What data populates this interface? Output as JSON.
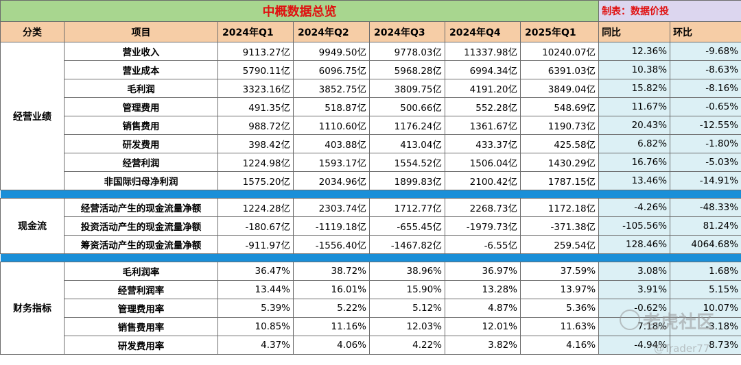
{
  "title": "中概数据总览",
  "maker": "制表：数据价投",
  "headers": {
    "category": "分类",
    "item": "项目",
    "quarters": [
      "2024年Q1",
      "2024年Q2",
      "2024年Q3",
      "2024年Q4",
      "2025年Q1"
    ],
    "yoy": "同比",
    "qoq": "环比"
  },
  "sections": [
    {
      "name": "经营业绩",
      "rows": [
        {
          "item": "营业收入",
          "values": [
            "9113.27亿",
            "9949.50亿",
            "9778.03亿",
            "11337.98亿",
            "10240.07亿"
          ],
          "yoy": "12.36%",
          "qoq": "-9.68%"
        },
        {
          "item": "营业成本",
          "values": [
            "5790.11亿",
            "6096.75亿",
            "5968.28亿",
            "6994.34亿",
            "6391.03亿"
          ],
          "yoy": "10.38%",
          "qoq": "-8.63%"
        },
        {
          "item": "毛利润",
          "values": [
            "3323.16亿",
            "3852.75亿",
            "3809.75亿",
            "4191.20亿",
            "3849.04亿"
          ],
          "yoy": "15.82%",
          "qoq": "-8.16%"
        },
        {
          "item": "管理费用",
          "values": [
            "491.35亿",
            "518.87亿",
            "500.66亿",
            "552.28亿",
            "548.69亿"
          ],
          "yoy": "11.67%",
          "qoq": "-0.65%"
        },
        {
          "item": "销售费用",
          "values": [
            "988.72亿",
            "1110.60亿",
            "1176.24亿",
            "1361.67亿",
            "1190.73亿"
          ],
          "yoy": "20.43%",
          "qoq": "-12.55%"
        },
        {
          "item": "研发费用",
          "values": [
            "398.42亿",
            "403.88亿",
            "413.04亿",
            "433.37亿",
            "425.58亿"
          ],
          "yoy": "6.82%",
          "qoq": "-1.80%"
        },
        {
          "item": "经营利润",
          "values": [
            "1224.98亿",
            "1593.17亿",
            "1554.52亿",
            "1506.04亿",
            "1430.29亿"
          ],
          "yoy": "16.76%",
          "qoq": "-5.03%"
        },
        {
          "item": "非国际归母净利润",
          "values": [
            "1575.20亿",
            "2034.96亿",
            "1899.83亿",
            "2100.42亿",
            "1787.15亿"
          ],
          "yoy": "13.46%",
          "qoq": "-14.91%"
        }
      ]
    },
    {
      "name": "现金流",
      "rows": [
        {
          "item": "经营活动产生的现金流量净额",
          "values": [
            "1224.28亿",
            "2303.74亿",
            "1712.77亿",
            "2268.73亿",
            "1172.18亿"
          ],
          "yoy": "-4.26%",
          "qoq": "-48.33%"
        },
        {
          "item": "投资活动产生的现金流量净额",
          "values": [
            "-180.67亿",
            "-1119.18亿",
            "-655.45亿",
            "-1979.73亿",
            "-371.38亿"
          ],
          "yoy": "-105.56%",
          "qoq": "81.24%"
        },
        {
          "item": "筹资活动产生的现金流量净额",
          "values": [
            "-911.97亿",
            "-1556.40亿",
            "-1467.82亿",
            "-6.55亿",
            "259.54亿"
          ],
          "yoy": "128.46%",
          "qoq": "4064.68%"
        }
      ]
    },
    {
      "name": "财务指标",
      "rows": [
        {
          "item": "毛利润率",
          "values": [
            "36.47%",
            "38.72%",
            "38.96%",
            "36.97%",
            "37.59%"
          ],
          "yoy": "3.08%",
          "qoq": "1.68%"
        },
        {
          "item": "经营利润率",
          "values": [
            "13.44%",
            "16.01%",
            "15.90%",
            "13.28%",
            "13.97%"
          ],
          "yoy": "3.91%",
          "qoq": "5.15%"
        },
        {
          "item": "管理费用率",
          "values": [
            "5.39%",
            "5.22%",
            "5.12%",
            "4.87%",
            "5.36%"
          ],
          "yoy": "-0.62%",
          "qoq": "10.07%"
        },
        {
          "item": "销售费用率",
          "values": [
            "10.85%",
            "11.16%",
            "12.03%",
            "12.01%",
            "11.63%"
          ],
          "yoy": "7.18%",
          "qoq": "-3.18%"
        },
        {
          "item": "研发费用率",
          "values": [
            "4.37%",
            "4.06%",
            "4.22%",
            "3.82%",
            "4.16%"
          ],
          "yoy": "-4.94%",
          "qoq": "8.73%"
        }
      ]
    }
  ],
  "watermark": {
    "text": "老虎社区",
    "sub": "@Trader77",
    "icon": "tiger-logo-icon"
  }
}
